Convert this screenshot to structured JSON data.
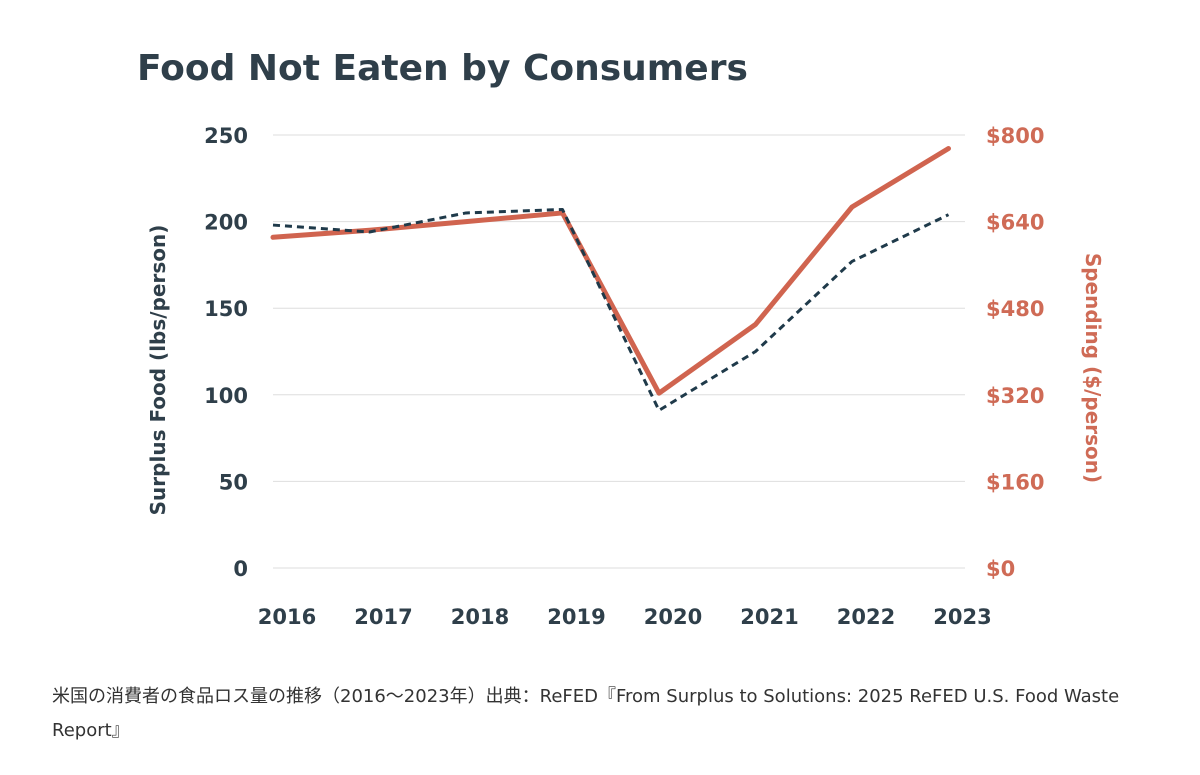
{
  "chart_data": {
    "type": "line",
    "title": "Food Not Eaten by Consumers",
    "categories": [
      "2016",
      "2017",
      "2018",
      "2019",
      "2020",
      "2021",
      "2022",
      "2023"
    ],
    "y_left": {
      "label": "Surplus Food (lbs/person)",
      "ticks": [
        "0",
        "50",
        "100",
        "150",
        "200",
        "250"
      ],
      "tick_values": [
        0,
        50,
        100,
        150,
        200,
        250
      ],
      "range": [
        0,
        250
      ]
    },
    "y_right": {
      "label": "Spending ($/person)",
      "ticks": [
        "$0",
        "$160",
        "$320",
        "$480",
        "$640",
        "$800"
      ],
      "tick_values": [
        0,
        160,
        320,
        480,
        640,
        800
      ],
      "range": [
        0,
        800
      ]
    },
    "series": [
      {
        "name": "Surplus Food (lbs/person)",
        "axis": "left",
        "style": "dashed",
        "color": "#1f3a4a",
        "values": [
          198,
          194,
          205,
          207,
          91,
          125,
          177,
          204
        ]
      },
      {
        "name": "Spending ($/person)",
        "axis": "right",
        "style": "solid",
        "color": "#d0644f",
        "values": [
          611,
          624,
          640,
          656,
          323,
          450,
          667,
          775
        ]
      }
    ],
    "grid": true
  },
  "caption": "米国の消費者の食品ロス量の推移（2016〜2023年）出典：ReFED『From Surplus to Solutions: 2025 ReFED U.S. Food Waste Report』"
}
